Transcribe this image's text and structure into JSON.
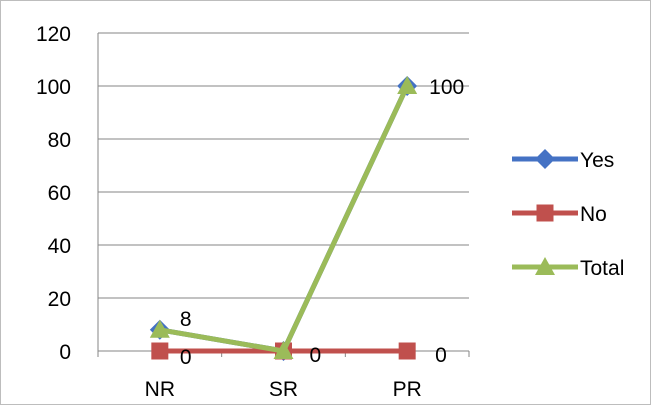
{
  "chart_data": {
    "type": "line",
    "categories": [
      "NR",
      "SR",
      "PR"
    ],
    "series": [
      {
        "name": "Yes",
        "values": [
          8,
          0,
          100
        ],
        "color": "#4472C4",
        "marker": "diamond"
      },
      {
        "name": "No",
        "values": [
          0,
          0,
          0
        ],
        "color": "#C0504D",
        "marker": "square"
      },
      {
        "name": "Total",
        "values": [
          8,
          0,
          100
        ],
        "color": "#9BBB59",
        "marker": "triangle"
      }
    ],
    "y_ticks": [
      "0",
      "20",
      "40",
      "60",
      "80",
      "100",
      "120"
    ],
    "ylim": [
      0,
      120
    ],
    "data_labels": [
      {
        "series": "Yes",
        "index": 0,
        "text": "8"
      },
      {
        "series": "No",
        "index": 0,
        "text": "0"
      },
      {
        "series": "No",
        "index": 1,
        "text": "0"
      },
      {
        "series": "No",
        "index": 2,
        "text": "0"
      },
      {
        "series": "Yes",
        "index": 2,
        "text": "100"
      }
    ],
    "grid": true,
    "legend_position": "right"
  }
}
